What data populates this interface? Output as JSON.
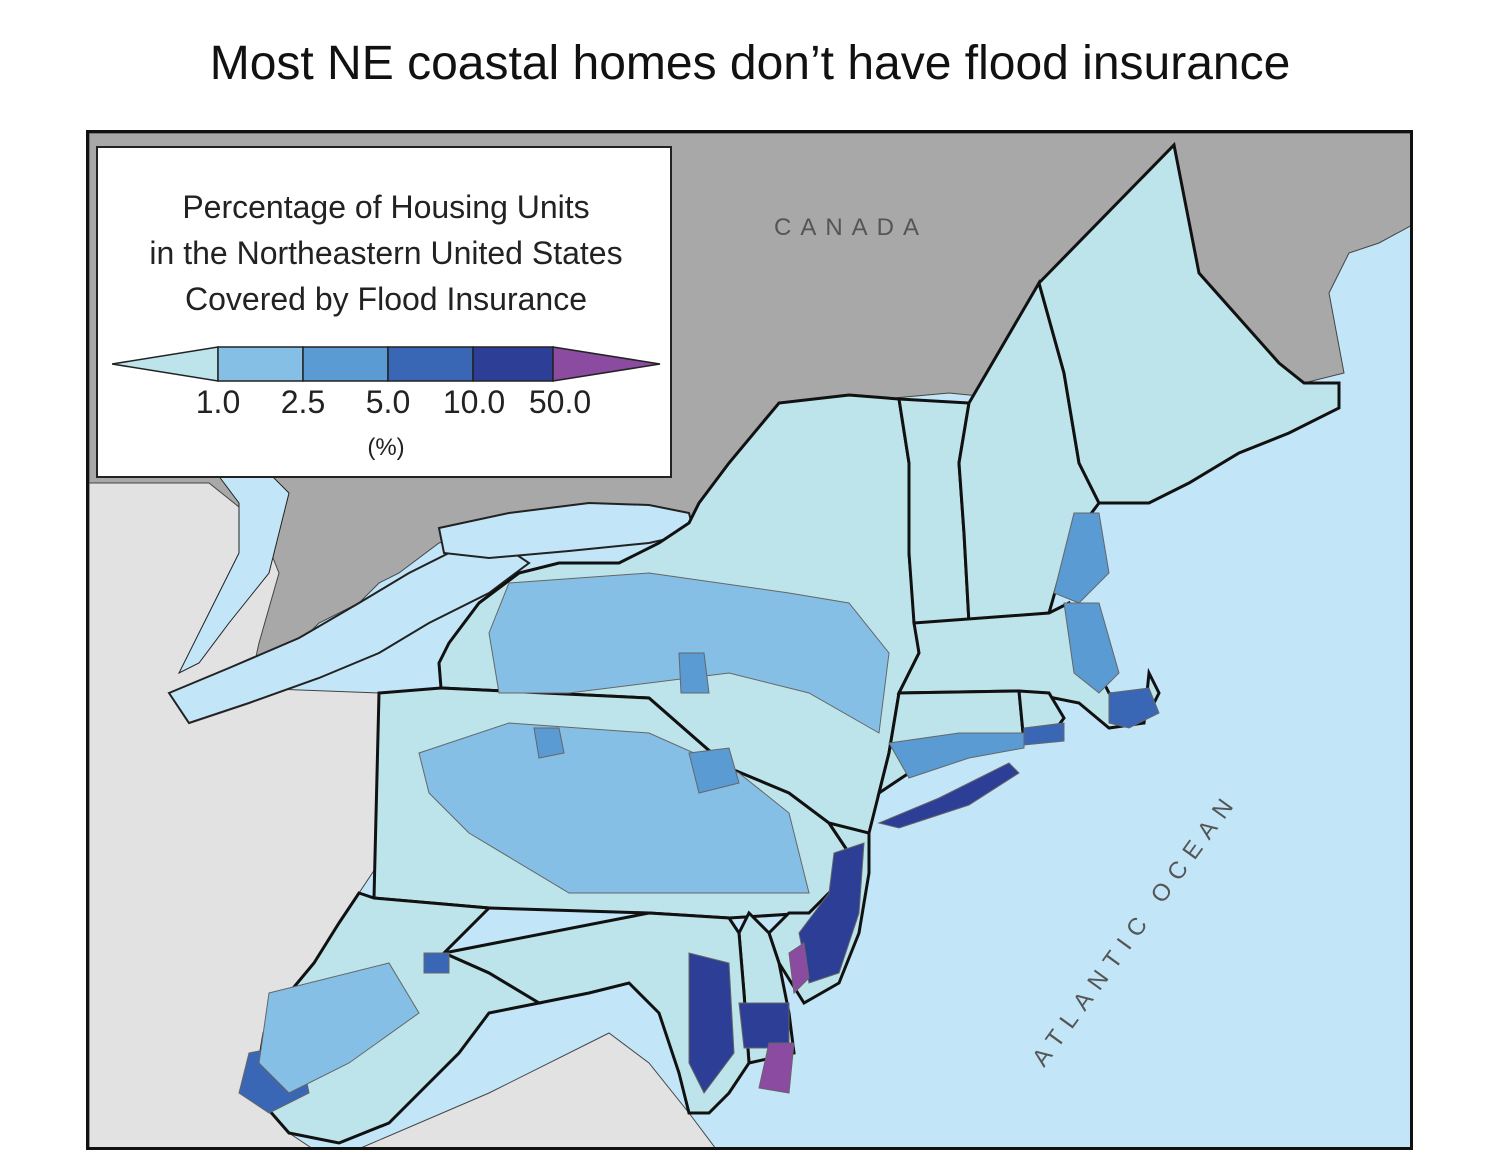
{
  "title": "Most NE coastal homes don’t have flood insurance",
  "legend": {
    "title_lines": [
      "Percentage of Housing Units",
      "in the Northeastern United States",
      "Covered by Flood Insurance"
    ],
    "ticks": [
      "1.0",
      "2.5",
      "5.0",
      "10.0",
      "50.0"
    ],
    "unit": "(%)",
    "colors": [
      "#bde4ea",
      "#86bfe6",
      "#5a9bd4",
      "#3a67b5",
      "#2c3e95",
      "#8a4ba0"
    ]
  },
  "labels": {
    "canada": "CANADA",
    "ocean": "ATLANTIC OCEAN"
  },
  "colors": {
    "water": "#c2e6f8",
    "canada_land": "#a8a8a8",
    "other_us_land": "#e2e2e2",
    "border": "#111111",
    "county_line": "#666666"
  }
}
